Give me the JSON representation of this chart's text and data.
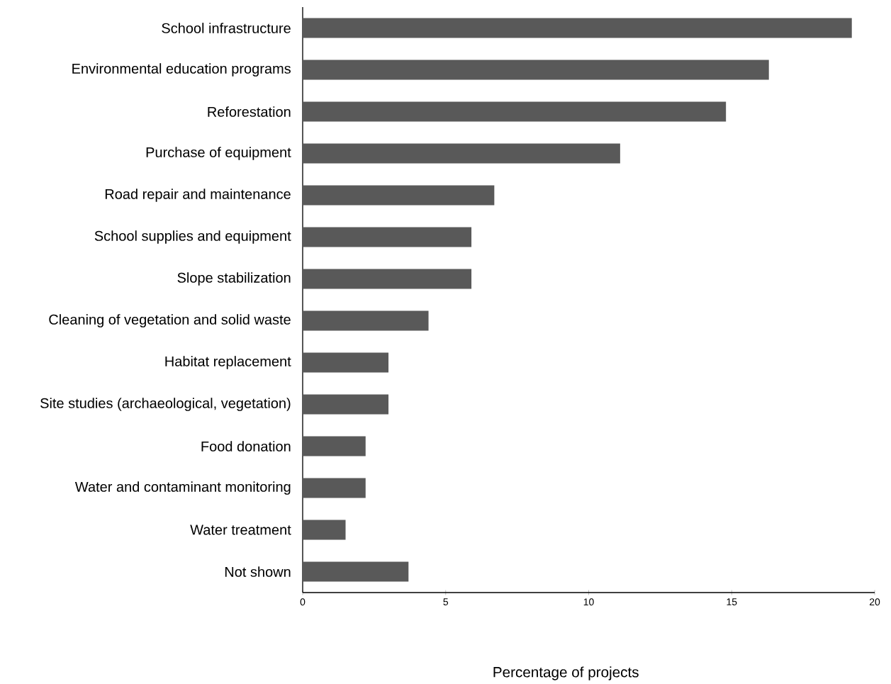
{
  "chart_data": {
    "type": "bar",
    "orientation": "horizontal",
    "xlabel": "Percentage of projects",
    "categories": [
      "School infrastructure",
      "Environmental education programs",
      "Reforestation",
      "Purchase of equipment",
      "Road repair and maintenance",
      "School supplies and equipment",
      "Slope stabilization",
      "Cleaning of vegetation and solid waste",
      "Habitat replacement",
      "Site studies (archaeological, vegetation)",
      "Food donation",
      "Water and contaminant monitoring",
      "Water treatment",
      "Not shown"
    ],
    "values": [
      19.2,
      16.3,
      14.8,
      11.1,
      6.7,
      5.9,
      5.9,
      4.4,
      3.0,
      3.0,
      2.2,
      2.2,
      1.5,
      3.7
    ],
    "color": "#595959",
    "xlim": [
      0,
      20
    ],
    "xticks": [
      0,
      5,
      10,
      15,
      20
    ]
  }
}
